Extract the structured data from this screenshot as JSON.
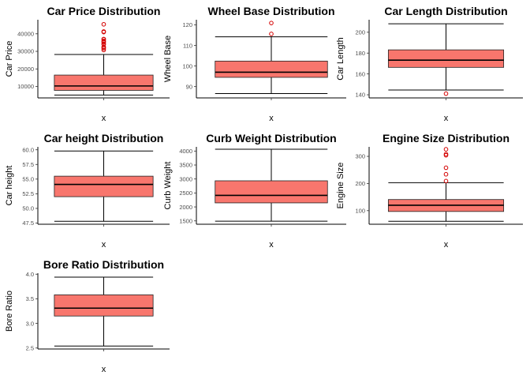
{
  "chart_data": [
    {
      "type": "box",
      "title": "Car Price Distribution",
      "ylabel": "Car Price",
      "xlabel": "x",
      "categories": [
        "x"
      ],
      "ylim": [
        3500,
        48000
      ],
      "yticks": [
        10000,
        20000,
        30000,
        40000
      ],
      "ytick_labels": [
        "10000",
        "20000",
        "30000",
        "40000"
      ],
      "whisker_low": 5118,
      "q1": 7788,
      "median": 10295,
      "q3": 16503,
      "whisker_high": 28248,
      "outliers": [
        30760,
        31600,
        32250,
        32528,
        34028,
        34184,
        35056,
        35550,
        36000,
        36880,
        37028,
        40960,
        41315,
        45400
      ],
      "box_color": "#F8766D"
    },
    {
      "type": "box",
      "title": "Wheel Base Distribution",
      "ylabel": "Wheel Base",
      "xlabel": "x",
      "categories": [
        "x"
      ],
      "ylim": [
        84.5,
        122.5
      ],
      "yticks": [
        90,
        100,
        110,
        120
      ],
      "ytick_labels": [
        "90",
        "100",
        "110",
        "120"
      ],
      "whisker_low": 86.6,
      "q1": 94.5,
      "median": 97.0,
      "q3": 102.4,
      "whisker_high": 114.2,
      "outliers": [
        115.6,
        120.9
      ],
      "box_color": "#F8766D"
    },
    {
      "type": "box",
      "title": "Car Length Distribution",
      "ylabel": "Car Length",
      "xlabel": "x",
      "categories": [
        "x"
      ],
      "ylim": [
        137,
        212
      ],
      "yticks": [
        140,
        160,
        180,
        200
      ],
      "ytick_labels": [
        "140",
        "160",
        "180",
        "200"
      ],
      "whisker_low": 144.6,
      "q1": 166.3,
      "median": 173.2,
      "q3": 183.1,
      "whisker_high": 208.1,
      "outliers": [
        141.1
      ],
      "box_color": "#F8766D"
    },
    {
      "type": "box",
      "title": "Car height Distribution",
      "ylabel": "Car height",
      "xlabel": "x",
      "categories": [
        "x"
      ],
      "ylim": [
        47.3,
        60.5
      ],
      "yticks": [
        47.5,
        50.0,
        52.5,
        55.0,
        57.5,
        60.0
      ],
      "ytick_labels": [
        "47.5",
        "50.0",
        "52.5",
        "55.0",
        "57.5",
        "60.0"
      ],
      "whisker_low": 47.8,
      "q1": 52.0,
      "median": 54.1,
      "q3": 55.5,
      "whisker_high": 59.8,
      "outliers": [],
      "box_color": "#F8766D"
    },
    {
      "type": "box",
      "title": "Curb Weight Distribution",
      "ylabel": "Curb Weight",
      "xlabel": "x",
      "categories": [
        "x"
      ],
      "ylim": [
        1380,
        4150
      ],
      "yticks": [
        1500,
        2000,
        2500,
        3000,
        3500,
        4000
      ],
      "ytick_labels": [
        "1500",
        "2000",
        "2500",
        "3000",
        "3500",
        "4000"
      ],
      "whisker_low": 1488,
      "q1": 2145,
      "median": 2414,
      "q3": 2935,
      "whisker_high": 4066,
      "outliers": [],
      "box_color": "#F8766D"
    },
    {
      "type": "box",
      "title": "Engine Size Distribution",
      "ylabel": "Engine Size",
      "xlabel": "x",
      "categories": [
        "x"
      ],
      "ylim": [
        50,
        335
      ],
      "yticks": [
        100,
        200,
        300
      ],
      "ytick_labels": [
        "100",
        "200",
        "300"
      ],
      "whisker_low": 61,
      "q1": 97,
      "median": 120,
      "q3": 141,
      "whisker_high": 203,
      "outliers": [
        209,
        234,
        258,
        304,
        308,
        326
      ],
      "box_color": "#F8766D"
    },
    {
      "type": "box",
      "title": "Bore Ratio Distribution",
      "ylabel": "Bore Ratio",
      "xlabel": "x",
      "categories": [
        "x"
      ],
      "ylim": [
        2.48,
        4.02
      ],
      "yticks": [
        2.5,
        3.0,
        3.5,
        4.0
      ],
      "ytick_labels": [
        "2.5",
        "3.0",
        "3.5",
        "4.0"
      ],
      "whisker_low": 2.54,
      "q1": 3.15,
      "median": 3.31,
      "q3": 3.58,
      "whisker_high": 3.94,
      "outliers": [],
      "box_color": "#F8766D"
    }
  ]
}
